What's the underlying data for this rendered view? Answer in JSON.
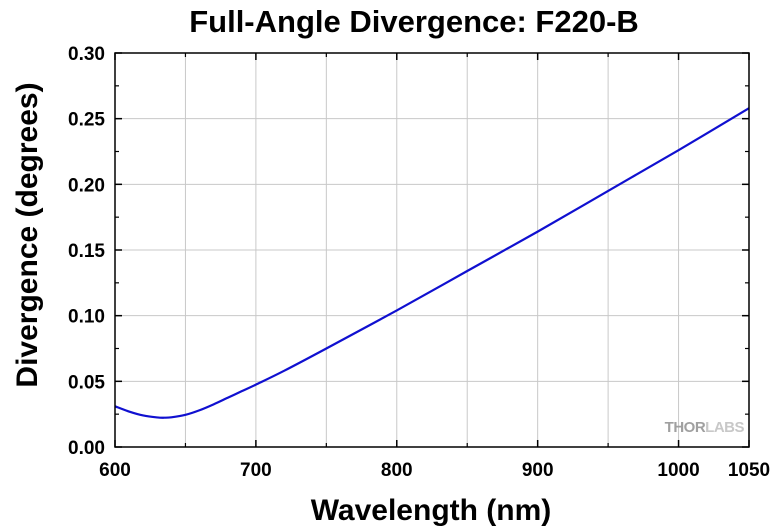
{
  "chart_data": {
    "type": "line",
    "title": "Full-Angle Divergence: F220-B",
    "xlabel": "Wavelength (nm)",
    "ylabel": "Divergence (degrees)",
    "xlim": [
      600,
      1050
    ],
    "ylim": [
      0.0,
      0.3
    ],
    "xticks": [
      600,
      700,
      800,
      900,
      1000,
      1050
    ],
    "xtick_labels": [
      "600",
      "700",
      "800",
      "900",
      "1000",
      "1050"
    ],
    "yticks": [
      0.0,
      0.05,
      0.1,
      0.15,
      0.2,
      0.25,
      0.3
    ],
    "ytick_labels": [
      "0.00",
      "0.05",
      "0.10",
      "0.15",
      "0.20",
      "0.25",
      "0.30"
    ],
    "grid": true,
    "series": [
      {
        "color": "#1010d0",
        "x": [
          600,
          610,
          620,
          630,
          635,
          640,
          650,
          660,
          670,
          680,
          690,
          700,
          720,
          750,
          800,
          850,
          900,
          950,
          1000,
          1050
        ],
        "y": [
          0.031,
          0.027,
          0.024,
          0.0225,
          0.0223,
          0.0226,
          0.0245,
          0.028,
          0.0325,
          0.0375,
          0.0425,
          0.0475,
          0.058,
          0.075,
          0.104,
          0.134,
          0.164,
          0.195,
          0.226,
          0.258
        ]
      }
    ]
  },
  "watermark": {
    "thor": "THOR",
    "labs": "LABS",
    "thor_color": "#a0a0a0",
    "labs_color": "#c8c8c8"
  }
}
